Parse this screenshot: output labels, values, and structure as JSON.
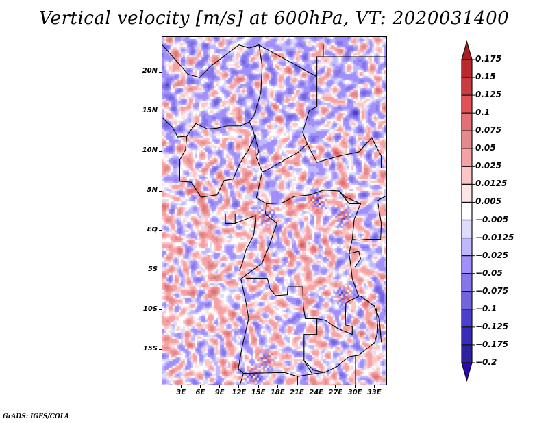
{
  "title": "Vertical velocity [m/s] at 600hPa, VT: 2020031400",
  "credit": "GrADS: IGES/COLA",
  "chart_data": {
    "type": "heatmap",
    "title": "Vertical velocity [m/s] at 600hPa, VT: 2020031400",
    "variable": "Vertical velocity",
    "units": "m/s",
    "level": "600hPa",
    "valid_time": "2020031400",
    "x_range": [
      0,
      35
    ],
    "y_range": [
      -19.5,
      24.5
    ],
    "xticks": [
      3,
      6,
      9,
      12,
      15,
      18,
      21,
      24,
      27,
      30,
      33
    ],
    "xtick_labels": [
      "3E",
      "6E",
      "9E",
      "12E",
      "15E",
      "18E",
      "21E",
      "24E",
      "27E",
      "30E",
      "33E"
    ],
    "yticks": [
      20,
      15,
      10,
      5,
      0,
      -5,
      -10,
      -15
    ],
    "ytick_labels": [
      "20N",
      "15N",
      "10N",
      "5N",
      "EQ",
      "5S",
      "10S",
      "15S"
    ],
    "legend_placement": "right",
    "colorbar": {
      "levels": [
        0.175,
        0.15,
        0.125,
        0.1,
        0.075,
        0.05,
        0.025,
        0.0125,
        0.005,
        -0.005,
        -0.0125,
        -0.025,
        -0.05,
        -0.075,
        -0.1,
        -0.125,
        -0.175,
        -0.2
      ],
      "labels": [
        "0.175",
        "0.15",
        "0.125",
        "0.1",
        "0.075",
        "0.05",
        "0.025",
        "0.0125",
        "0.005",
        "−0.005",
        "−0.0125",
        "−0.025",
        "−0.05",
        "−0.075",
        "−0.1",
        "−0.125",
        "−0.175",
        "−0.2"
      ],
      "colors": [
        "#a81e23",
        "#b82a2e",
        "#c93d40",
        "#e05256",
        "#e37075",
        "#e28a8e",
        "#f6a2a4",
        "#fcc5c6",
        "#fde4e5",
        "#ffffff",
        "#dcdcfc",
        "#c0b8fc",
        "#a28ffa",
        "#8577ea",
        "#7364dc",
        "#4c3fcc",
        "#3a2bb8",
        "#2d22a0",
        "#2a0aa8"
      ],
      "extend": "both"
    },
    "pattern_notes": "Alternating red (ascent) and blue (descent) mesoscale streaks across Central Africa; stronger red/blue cores near Congo basin (~0-5N, 12-30E), SW Africa (~15-20S, 15E) and East African lakes region."
  }
}
